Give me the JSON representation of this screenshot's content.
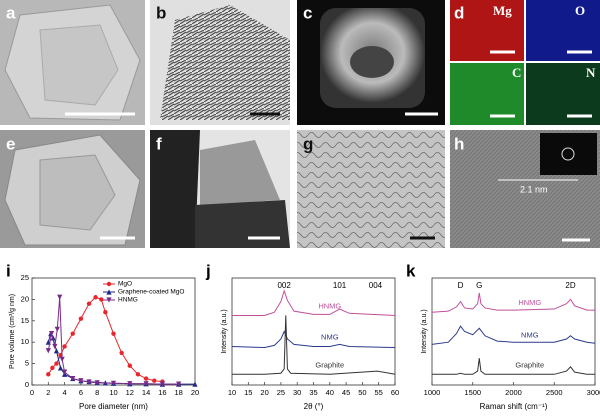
{
  "panel_labels": [
    "a",
    "b",
    "c",
    "d",
    "e",
    "f",
    "g",
    "h"
  ],
  "map_labels": [
    "Mg",
    "O",
    "C",
    "N"
  ],
  "lattice_spacing": "2.1 nm",
  "chart_data": [
    {
      "type": "line",
      "panel_label": "i",
      "x_label": "Pore diameter (nm)",
      "y_label": "Pore volume (cm³/g nm)",
      "xlim": [
        0,
        20
      ],
      "xticks": [
        0,
        2,
        4,
        6,
        8,
        10,
        12,
        14,
        16,
        18,
        20
      ],
      "ylim": [
        0,
        25
      ],
      "yticks": [
        0,
        5,
        10,
        15,
        20,
        25
      ],
      "legend": "upper right",
      "series": [
        {
          "name": "MgO",
          "color": "#e8262b",
          "marker": "circle",
          "x": [
            2,
            2.5,
            3,
            3.5,
            4,
            5,
            6,
            7,
            7.8,
            8.5,
            9,
            10,
            11,
            12,
            13,
            14,
            15,
            16
          ],
          "values": [
            2.5,
            4,
            5,
            7,
            9,
            12,
            15.5,
            19,
            20.5,
            20,
            17,
            12,
            7.5,
            4.5,
            2.5,
            1.5,
            1,
            0.8
          ]
        },
        {
          "name": "Graphene-coated MgO",
          "color": "#1f2a8a",
          "marker": "triangle-up",
          "x": [
            2,
            2.3,
            2.6,
            3,
            3.5,
            4,
            5,
            6,
            7,
            8,
            9,
            10,
            12,
            14,
            16,
            18,
            20
          ],
          "values": [
            10,
            12,
            11,
            8,
            4,
            2.5,
            1.5,
            1,
            0.8,
            0.6,
            0.5,
            0.4,
            0.3,
            0.3,
            0.2,
            0.2,
            0.2
          ]
        },
        {
          "name": "HNMG",
          "color": "#7b2a8c",
          "marker": "triangle-down",
          "x": [
            2,
            2.4,
            2.8,
            3.1,
            3.4,
            3.7,
            4,
            5,
            6,
            7,
            8,
            10,
            12,
            14,
            16,
            18
          ],
          "values": [
            8,
            12,
            9,
            13,
            20.5,
            6,
            3,
            1.5,
            1,
            0.7,
            0.5,
            0.4,
            0.3,
            0.3,
            0.2,
            0.2
          ]
        }
      ]
    },
    {
      "type": "spectrum",
      "panel_label": "j",
      "x_label": "2θ (°)",
      "y_label": "Intensity (a.u.)",
      "xlim": [
        10,
        60
      ],
      "xticks": [
        10,
        15,
        20,
        25,
        30,
        35,
        40,
        45,
        50,
        55,
        60
      ],
      "ylim": [
        0,
        10
      ],
      "annotations": [
        {
          "text": "002",
          "x": 26
        },
        {
          "text": "101",
          "x": 43
        },
        {
          "text": "004",
          "x": 54
        }
      ],
      "series": [
        {
          "name": "HNMG",
          "color": "#c0509a",
          "x": [
            10,
            20,
            23,
            25,
            26,
            27,
            29,
            35,
            40,
            43,
            46,
            60
          ],
          "values": [
            6.5,
            6.5,
            6.8,
            7.8,
            8.8,
            7.9,
            6.9,
            6.6,
            6.6,
            7.1,
            6.7,
            6.5
          ]
        },
        {
          "name": "NMG",
          "color": "#2b3a8c",
          "x": [
            10,
            20,
            23,
            25,
            26,
            27,
            29,
            35,
            40,
            43,
            46,
            60
          ],
          "values": [
            3.6,
            3.5,
            3.7,
            4.3,
            5,
            4.3,
            3.8,
            3.6,
            3.6,
            3.8,
            3.6,
            3.5
          ]
        },
        {
          "name": "Graphite",
          "color": "#333333",
          "x": [
            10,
            20,
            25,
            26,
            26.5,
            27,
            28,
            40,
            54.5,
            60
          ],
          "values": [
            1,
            1,
            1.1,
            1.5,
            6.5,
            1.5,
            1.1,
            1,
            1.3,
            1
          ]
        }
      ]
    },
    {
      "type": "spectrum",
      "panel_label": "k",
      "x_label": "Raman shift (cm⁻¹)",
      "y_label": "Intensity (a.u.)",
      "xlim": [
        1000,
        3000
      ],
      "xticks": [
        1000,
        1500,
        2000,
        2500,
        3000
      ],
      "ylim": [
        0,
        10
      ],
      "annotations": [
        {
          "text": "D",
          "x": 1350
        },
        {
          "text": "G",
          "x": 1580
        },
        {
          "text": "2D",
          "x": 2700
        }
      ],
      "series": [
        {
          "name": "HNMG",
          "color": "#c0509a",
          "x": [
            1000,
            1200,
            1300,
            1350,
            1400,
            1500,
            1560,
            1580,
            1600,
            1650,
            1800,
            2000,
            2500,
            2650,
            2700,
            2750,
            2900,
            3000
          ],
          "values": [
            6.8,
            6.9,
            7.3,
            7.8,
            7.2,
            7.1,
            7.6,
            8.6,
            7.6,
            7.2,
            7,
            7,
            7.1,
            7.6,
            8,
            7.4,
            7,
            7
          ]
        },
        {
          "name": "NMG",
          "color": "#2b3a8c",
          "x": [
            1000,
            1200,
            1300,
            1350,
            1400,
            1500,
            1580,
            1650,
            1800,
            2000,
            2500,
            2650,
            2700,
            2750,
            2900,
            3000
          ],
          "values": [
            3.8,
            4,
            4.8,
            5.5,
            5,
            4.7,
            5.3,
            4.6,
            4.1,
            4,
            4,
            4.3,
            4.6,
            4.3,
            4,
            3.9
          ]
        },
        {
          "name": "Graphite",
          "color": "#333333",
          "x": [
            1000,
            1300,
            1350,
            1400,
            1500,
            1560,
            1580,
            1600,
            1650,
            2000,
            2500,
            2650,
            2700,
            2750,
            2900,
            3000
          ],
          "values": [
            1,
            1,
            1.1,
            1,
            1,
            1.3,
            2.5,
            1.3,
            1,
            1,
            1,
            1.3,
            1.7,
            1.2,
            1,
            1
          ]
        }
      ]
    }
  ]
}
